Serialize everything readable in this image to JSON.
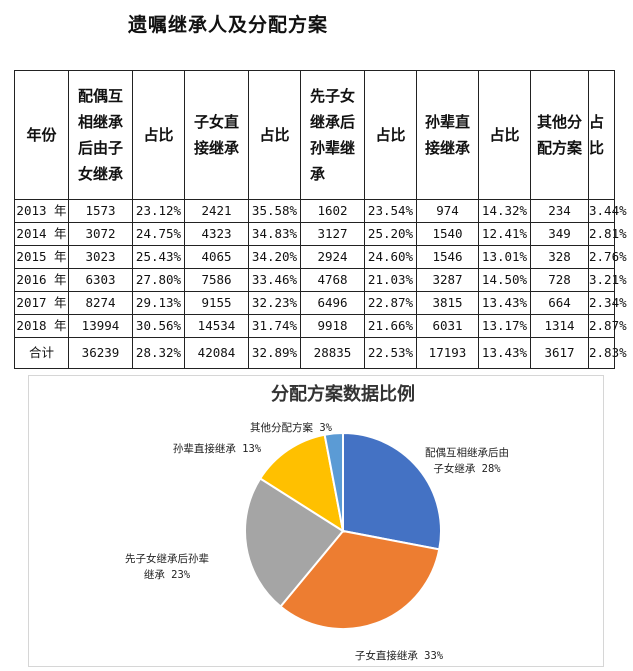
{
  "page": {
    "title": "遗嘱继承人及分配方案"
  },
  "table": {
    "headers": [
      "年份",
      "配偶互相继承后由子女继承",
      "占比",
      "子女直接继承",
      "占比",
      "先子女继承后孙辈继承",
      "占比",
      "孙辈直接继承",
      "占比",
      "其他分配方案",
      "占比"
    ],
    "header_lines": [
      [
        "年份"
      ],
      [
        "配偶互",
        "相继承",
        "后由子",
        "女继承"
      ],
      [
        "占比"
      ],
      [
        "子女直",
        "接继承"
      ],
      [
        "占比"
      ],
      [
        "先子女",
        "继承后",
        "孙辈继",
        "承"
      ],
      [
        "占比"
      ],
      [
        "孙辈直",
        "接继承"
      ],
      [
        "占比"
      ],
      [
        "其他分",
        "配方案"
      ],
      [
        "占比"
      ]
    ],
    "rows": [
      [
        "2013 年",
        "1573",
        "23.12%",
        "2421",
        "35.58%",
        "1602",
        "23.54%",
        "974",
        "14.32%",
        "234",
        "3.44%"
      ],
      [
        "2014 年",
        "3072",
        "24.75%",
        "4323",
        "34.83%",
        "3127",
        "25.20%",
        "1540",
        "12.41%",
        "349",
        "2.81%"
      ],
      [
        "2015 年",
        "3023",
        "25.43%",
        "4065",
        "34.20%",
        "2924",
        "24.60%",
        "1546",
        "13.01%",
        "328",
        "2.76%"
      ],
      [
        "2016 年",
        "6303",
        "27.80%",
        "7586",
        "33.46%",
        "4768",
        "21.03%",
        "3287",
        "14.50%",
        "728",
        "3.21%"
      ],
      [
        "2017 年",
        "8274",
        "29.13%",
        "9155",
        "32.23%",
        "6496",
        "22.87%",
        "3815",
        "13.43%",
        "664",
        "2.34%"
      ],
      [
        "2018 年",
        "13994",
        "30.56%",
        "14534",
        "31.74%",
        "9918",
        "21.66%",
        "6031",
        "13.17%",
        "1314",
        "2.87%"
      ],
      [
        "合计",
        "36239",
        "28.32%",
        "42084",
        "32.89%",
        "28835",
        "22.53%",
        "17193",
        "13.43%",
        "3617",
        "2.83%"
      ]
    ]
  },
  "chart_data": {
    "type": "pie",
    "title": "分配方案数据比例",
    "labels": [
      "配偶互相继承后由子女继承",
      "子女直接继承",
      "先子女继承后孙辈继承",
      "孙辈直接继承",
      "其他分配方案"
    ],
    "values": [
      28,
      33,
      23,
      13,
      3
    ],
    "colors": [
      "#4472C4",
      "#ED7D31",
      "#A5A5A5",
      "#FFC000",
      "#5B9BD5"
    ],
    "label_lines": [
      [
        "配偶互相继承后由",
        "子女继承 28%"
      ],
      [
        "子女直接继承 33%"
      ],
      [
        "先子女继承后孙辈",
        "继承 23%"
      ],
      [
        "孙辈直接继承 13%"
      ],
      [
        "其他分配方案 3%"
      ]
    ]
  }
}
